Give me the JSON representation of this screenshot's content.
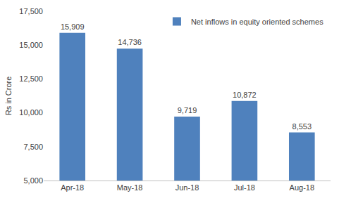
{
  "chart_data": {
    "type": "bar",
    "y_label": "Rs in Crore",
    "categories": [
      "Apr-18",
      "May-18",
      "Jun-18",
      "Jul-18",
      "Aug-18"
    ],
    "series": [
      {
        "name": "Net inflows in equity oriented schemes",
        "color": "#4f81bd",
        "values": [
          15909,
          14736,
          9719,
          10872,
          8553
        ],
        "value_labels": [
          "15,909",
          "14,736",
          "9,719",
          "10,872",
          "8,553"
        ]
      }
    ],
    "ylim": [
      5000,
      17500
    ],
    "yticks": [
      {
        "value": 5000,
        "label": "5,000"
      },
      {
        "value": 7500,
        "label": "7,500"
      },
      {
        "value": 10000,
        "label": "10,000"
      },
      {
        "value": 12500,
        "label": "12,500"
      },
      {
        "value": 15000,
        "label": "15,000"
      },
      {
        "value": 17500,
        "label": "17,500"
      }
    ],
    "grid": false,
    "legend": "top right",
    "data_labels": true
  }
}
